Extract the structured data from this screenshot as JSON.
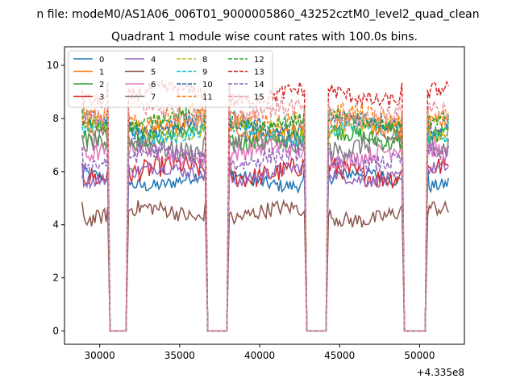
{
  "chart_data": {
    "type": "line",
    "suptitle": "n file: modeM0/AS1A06_006T01_9000005860_43252cztM0_level2_quad_clean",
    "title": "Quadrant 1 module wise count rates with 100.0s bins.",
    "xlabel": "",
    "ylabel": "",
    "x_offset_label": "+4.335e8",
    "xlim": [
      27800,
      52800
    ],
    "ylim": [
      -0.5,
      10.7
    ],
    "x_ticks": [
      30000,
      35000,
      40000,
      45000,
      50000
    ],
    "x_tick_labels": [
      "30000",
      "35000",
      "40000",
      "45000",
      "50000"
    ],
    "y_ticks": [
      0,
      2,
      4,
      6,
      8,
      10
    ],
    "y_tick_labels": [
      "0",
      "2",
      "4",
      "6",
      "8",
      "10"
    ],
    "legend_position": "top-left",
    "legend_columns": 4,
    "grid": false,
    "segments": [
      [
        28900,
        30500
      ],
      [
        31800,
        36600
      ],
      [
        38100,
        42800
      ],
      [
        44300,
        48900
      ],
      [
        50500,
        51800
      ]
    ],
    "gaps": [
      [
        30500,
        31800
      ],
      [
        36600,
        38100
      ],
      [
        42800,
        44300
      ],
      [
        48900,
        50500
      ]
    ],
    "bin_width": 100,
    "series": [
      {
        "name": "0",
        "mean": 5.7,
        "color": "#1f77b4",
        "dashed": false
      },
      {
        "name": "1",
        "mean": 7.6,
        "color": "#ff7f0e",
        "dashed": false
      },
      {
        "name": "2",
        "mean": 7.3,
        "color": "#2ca02c",
        "dashed": false
      },
      {
        "name": "3",
        "mean": 6.0,
        "color": "#d62728",
        "dashed": false
      },
      {
        "name": "4",
        "mean": 5.9,
        "color": "#9467bd",
        "dashed": false
      },
      {
        "name": "5",
        "mean": 4.4,
        "color": "#8c564b",
        "dashed": false
      },
      {
        "name": "6",
        "mean": 6.7,
        "color": "#e377c2",
        "dashed": false
      },
      {
        "name": "7",
        "mean": 7.0,
        "color": "#7f7f7f",
        "dashed": false
      },
      {
        "name": "8",
        "mean": 7.6,
        "color": "#bcbd22",
        "dashed": true
      },
      {
        "name": "9",
        "mean": 7.5,
        "color": "#17becf",
        "dashed": true
      },
      {
        "name": "10",
        "mean": 7.8,
        "color": "#1f77b4",
        "dashed": true
      },
      {
        "name": "11",
        "mean": 8.0,
        "color": "#ff7f0e",
        "dashed": true
      },
      {
        "name": "12",
        "mean": 7.9,
        "color": "#2ca02c",
        "dashed": true
      },
      {
        "name": "13",
        "mean": 8.9,
        "color": "#d62728",
        "dashed": true
      },
      {
        "name": "14",
        "mean": 6.5,
        "color": "#9467bd",
        "dashed": true
      },
      {
        "name": "15",
        "mean": 8.2,
        "color": "#e7969c",
        "dashed": true
      }
    ]
  }
}
